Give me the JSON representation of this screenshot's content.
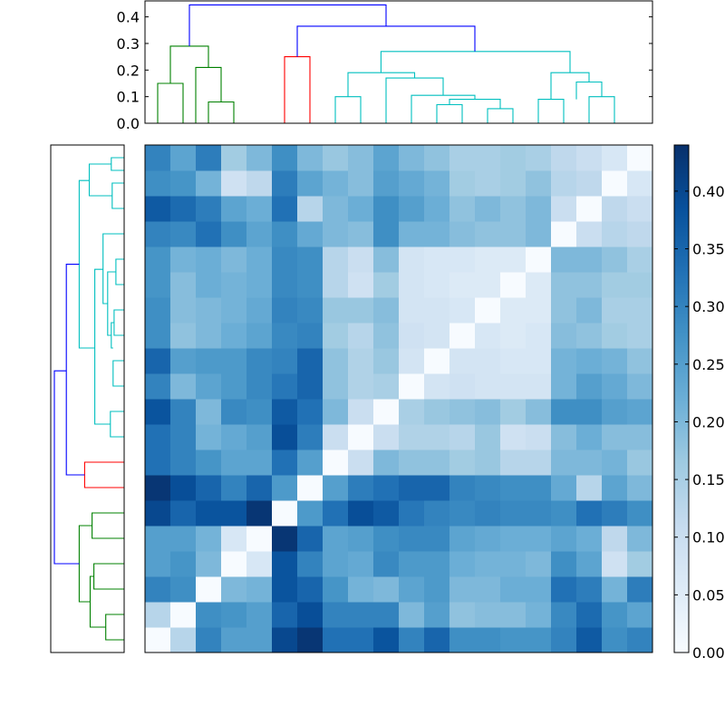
{
  "chart_data": [
    {
      "type": "heatmap",
      "title": "",
      "xlabel": "",
      "ylabel": "",
      "colormap": "Blues",
      "n": 20,
      "matrix": [
        [
          0.0,
          0.13,
          0.3,
          0.25,
          0.25,
          0.4,
          0.43,
          0.33,
          0.33,
          0.38,
          0.3,
          0.35,
          0.28,
          0.28,
          0.27,
          0.27,
          0.3,
          0.37,
          0.28,
          0.3
        ],
        [
          0.13,
          0.0,
          0.28,
          0.27,
          0.25,
          0.35,
          0.39,
          0.3,
          0.3,
          0.3,
          0.2,
          0.25,
          0.18,
          0.19,
          0.19,
          0.21,
          0.29,
          0.34,
          0.27,
          0.24
        ],
        [
          0.3,
          0.28,
          0.0,
          0.2,
          0.21,
          0.38,
          0.35,
          0.27,
          0.21,
          0.2,
          0.24,
          0.26,
          0.2,
          0.2,
          0.22,
          0.22,
          0.33,
          0.31,
          0.21,
          0.31
        ],
        [
          0.25,
          0.27,
          0.2,
          0.0,
          0.07,
          0.38,
          0.3,
          0.24,
          0.23,
          0.29,
          0.26,
          0.26,
          0.22,
          0.21,
          0.21,
          0.2,
          0.28,
          0.24,
          0.09,
          0.16
        ],
        [
          0.25,
          0.25,
          0.21,
          0.07,
          0.0,
          0.43,
          0.35,
          0.24,
          0.25,
          0.28,
          0.29,
          0.29,
          0.24,
          0.23,
          0.22,
          0.22,
          0.24,
          0.22,
          0.12,
          0.2
        ],
        [
          0.4,
          0.35,
          0.38,
          0.38,
          0.43,
          0.0,
          0.26,
          0.33,
          0.39,
          0.37,
          0.32,
          0.3,
          0.29,
          0.3,
          0.29,
          0.29,
          0.28,
          0.33,
          0.31,
          0.28
        ],
        [
          0.43,
          0.39,
          0.35,
          0.3,
          0.35,
          0.26,
          0.0,
          0.25,
          0.31,
          0.33,
          0.35,
          0.35,
          0.3,
          0.29,
          0.28,
          0.28,
          0.23,
          0.13,
          0.24,
          0.2
        ],
        [
          0.33,
          0.3,
          0.27,
          0.24,
          0.24,
          0.33,
          0.25,
          0.0,
          0.1,
          0.2,
          0.18,
          0.18,
          0.16,
          0.17,
          0.13,
          0.13,
          0.2,
          0.2,
          0.21,
          0.17
        ],
        [
          0.33,
          0.3,
          0.21,
          0.23,
          0.25,
          0.39,
          0.31,
          0.1,
          0.0,
          0.1,
          0.14,
          0.14,
          0.13,
          0.17,
          0.09,
          0.1,
          0.19,
          0.22,
          0.19,
          0.19
        ],
        [
          0.38,
          0.3,
          0.2,
          0.29,
          0.28,
          0.37,
          0.33,
          0.2,
          0.1,
          0.0,
          0.15,
          0.17,
          0.18,
          0.19,
          0.16,
          0.19,
          0.28,
          0.28,
          0.25,
          0.24
        ],
        [
          0.3,
          0.2,
          0.24,
          0.26,
          0.29,
          0.32,
          0.35,
          0.18,
          0.14,
          0.15,
          0.0,
          0.08,
          0.09,
          0.08,
          0.08,
          0.08,
          0.21,
          0.25,
          0.23,
          0.2
        ],
        [
          0.35,
          0.25,
          0.26,
          0.26,
          0.29,
          0.3,
          0.35,
          0.18,
          0.14,
          0.17,
          0.08,
          0.0,
          0.08,
          0.08,
          0.07,
          0.07,
          0.21,
          0.22,
          0.21,
          0.18
        ],
        [
          0.28,
          0.18,
          0.2,
          0.22,
          0.24,
          0.29,
          0.3,
          0.16,
          0.13,
          0.18,
          0.09,
          0.08,
          0.0,
          0.07,
          0.06,
          0.07,
          0.19,
          0.18,
          0.16,
          0.15
        ],
        [
          0.28,
          0.19,
          0.2,
          0.21,
          0.23,
          0.3,
          0.29,
          0.17,
          0.17,
          0.19,
          0.08,
          0.08,
          0.07,
          0.0,
          0.06,
          0.06,
          0.18,
          0.2,
          0.15,
          0.15
        ],
        [
          0.27,
          0.19,
          0.22,
          0.21,
          0.22,
          0.29,
          0.28,
          0.13,
          0.09,
          0.16,
          0.08,
          0.07,
          0.06,
          0.06,
          0.0,
          0.06,
          0.18,
          0.18,
          0.16,
          0.16
        ],
        [
          0.27,
          0.21,
          0.22,
          0.2,
          0.22,
          0.29,
          0.28,
          0.13,
          0.1,
          0.19,
          0.08,
          0.07,
          0.07,
          0.06,
          0.06,
          0.0,
          0.2,
          0.2,
          0.18,
          0.15
        ],
        [
          0.3,
          0.29,
          0.33,
          0.28,
          0.24,
          0.28,
          0.23,
          0.2,
          0.19,
          0.28,
          0.21,
          0.21,
          0.19,
          0.18,
          0.18,
          0.2,
          0.0,
          0.1,
          0.13,
          0.12
        ],
        [
          0.37,
          0.34,
          0.31,
          0.24,
          0.22,
          0.33,
          0.13,
          0.2,
          0.22,
          0.28,
          0.25,
          0.22,
          0.18,
          0.2,
          0.18,
          0.2,
          0.1,
          0.0,
          0.12,
          0.1
        ],
        [
          0.28,
          0.27,
          0.21,
          0.09,
          0.12,
          0.31,
          0.24,
          0.21,
          0.19,
          0.25,
          0.23,
          0.21,
          0.16,
          0.15,
          0.16,
          0.18,
          0.13,
          0.12,
          0.0,
          0.07
        ],
        [
          0.3,
          0.24,
          0.31,
          0.16,
          0.2,
          0.28,
          0.2,
          0.17,
          0.19,
          0.24,
          0.2,
          0.18,
          0.15,
          0.15,
          0.16,
          0.15,
          0.12,
          0.1,
          0.07,
          0.0
        ]
      ],
      "colorbar": {
        "min": 0.0,
        "max": 0.44,
        "ticks": [
          "0.00",
          "0.05",
          "0.10",
          "0.15",
          "0.20",
          "0.25",
          "0.30",
          "0.35",
          "0.40"
        ]
      }
    },
    {
      "type": "dendrogram",
      "orientation": "top",
      "ylim": [
        0,
        0.46
      ],
      "yticks": [
        "0.0",
        "0.1",
        "0.2",
        "0.3",
        "0.4"
      ],
      "links": [
        {
          "x": [
            0,
            0,
            1,
            1
          ],
          "y": [
            0,
            0.15,
            0.15,
            0
          ],
          "color": "#008000"
        },
        {
          "x": [
            2,
            2,
            3,
            3
          ],
          "y": [
            0,
            0.08,
            0.08,
            0
          ],
          "color": "#008000"
        },
        {
          "x": [
            1.5,
            1.5,
            2.5,
            2.5
          ],
          "y": [
            0,
            0.21,
            0.21,
            0.08
          ],
          "color": "#008000"
        },
        {
          "x": [
            0.5,
            0.5,
            2,
            2
          ],
          "y": [
            0.15,
            0.29,
            0.29,
            0.21
          ],
          "color": "#008000"
        },
        {
          "x": [
            5,
            5,
            6,
            6
          ],
          "y": [
            0,
            0.25,
            0.25,
            0
          ],
          "color": "#ff0000"
        },
        {
          "x": [
            7,
            7,
            8,
            8
          ],
          "y": [
            0,
            0.1,
            0.1,
            0
          ],
          "color": "#00bfbf"
        },
        {
          "x": [
            11,
            11,
            12,
            12
          ],
          "y": [
            0,
            0.07,
            0.07,
            0
          ],
          "color": "#00bfbf"
        },
        {
          "x": [
            13,
            13,
            14,
            14
          ],
          "y": [
            0,
            0.055,
            0.055,
            0
          ],
          "color": "#00bfbf"
        },
        {
          "x": [
            11.5,
            11.5,
            13.5,
            13.5
          ],
          "y": [
            0.07,
            0.09,
            0.09,
            0.055
          ],
          "color": "#00bfbf"
        },
        {
          "x": [
            10,
            10,
            12.5,
            12.5
          ],
          "y": [
            0,
            0.105,
            0.105,
            0.09
          ],
          "color": "#00bfbf"
        },
        {
          "x": [
            9,
            9,
            11.25,
            11.25
          ],
          "y": [
            0,
            0.17,
            0.17,
            0.105
          ],
          "color": "#00bfbf"
        },
        {
          "x": [
            7.5,
            7.5,
            10.125,
            10.125
          ],
          "y": [
            0.1,
            0.19,
            0.19,
            0.17
          ],
          "color": "#00bfbf"
        },
        {
          "x": [
            15,
            15,
            16,
            16
          ],
          "y": [
            0,
            0.09,
            0.09,
            0
          ],
          "color": "#00bfbf"
        },
        {
          "x": [
            17,
            17,
            18,
            18
          ],
          "y": [
            0,
            0.1,
            0.1,
            0
          ],
          "color": "#00bfbf"
        },
        {
          "x": [
            16.5,
            16.5,
            17.5,
            17.5
          ],
          "y": [
            0.09,
            0.155,
            0.155,
            0.1
          ],
          "color": "#00bfbf"
        },
        {
          "x": [
            15.5,
            15.5,
            17,
            17
          ],
          "y": [
            0.09,
            0.19,
            0.19,
            0.155
          ],
          "color": "#00bfbf"
        },
        {
          "x": [
            8.8,
            8.8,
            16.25,
            16.25
          ],
          "y": [
            0.19,
            0.27,
            0.27,
            0.19
          ],
          "color": "#00bfbf"
        },
        {
          "x": [
            5.5,
            5.5,
            12.5,
            12.5
          ],
          "y": [
            0.25,
            0.365,
            0.365,
            0.27
          ],
          "color": "#0000ff"
        },
        {
          "x": [
            1.25,
            1.25,
            9,
            9
          ],
          "y": [
            0.29,
            0.445,
            0.445,
            0.365
          ],
          "color": "#0000ff"
        }
      ]
    },
    {
      "type": "dendrogram",
      "orientation": "left",
      "links": [
        {
          "r": [
            0,
            0,
            1,
            1
          ],
          "d": [
            0,
            0.1,
            0.1,
            0
          ],
          "color": "#008000"
        },
        {
          "r": [
            2,
            2,
            3,
            3
          ],
          "d": [
            0,
            0.165,
            0.165,
            0
          ],
          "color": "#008000"
        },
        {
          "r": [
            0.5,
            0.5,
            2.5,
            2.5
          ],
          "d": [
            0.1,
            0.185,
            0.185,
            0.165
          ],
          "color": "#008000"
        },
        {
          "r": [
            4,
            4,
            5,
            5
          ],
          "d": [
            0,
            0.175,
            0.175,
            0
          ],
          "color": "#008000"
        },
        {
          "r": [
            1.5,
            1.5,
            4.5,
            4.5
          ],
          "d": [
            0.185,
            0.245,
            0.245,
            0.175
          ],
          "color": "#008000"
        },
        {
          "r": [
            6,
            6,
            7,
            7
          ],
          "d": [
            0,
            0.215,
            0.215,
            0
          ],
          "color": "#ff0000"
        },
        {
          "r": [
            8,
            8,
            9,
            9
          ],
          "d": [
            0,
            0.075,
            0.075,
            0
          ],
          "color": "#00bfbf"
        },
        {
          "r": [
            10,
            10,
            11,
            11
          ],
          "d": [
            0,
            0.06,
            0.06,
            0
          ],
          "color": "#00bfbf"
        },
        {
          "r": [
            12,
            12,
            13,
            13
          ],
          "d": [
            0,
            0.055,
            0.055,
            0
          ],
          "color": "#00bfbf"
        },
        {
          "r": [
            11.5,
            11.5,
            12.5,
            12.5
          ],
          "d": [
            0.06,
            0.07,
            0.07,
            0.055
          ],
          "color": "#00bfbf"
        },
        {
          "r": [
            14,
            14,
            15,
            15
          ],
          "d": [
            0,
            0.045,
            0.045,
            0
          ],
          "color": "#00bfbf"
        },
        {
          "r": [
            12,
            12,
            14.5,
            14.5
          ],
          "d": [
            0.07,
            0.09,
            0.09,
            0.045
          ],
          "color": "#00bfbf"
        },
        {
          "r": [
            13.25,
            13.25,
            16,
            16
          ],
          "d": [
            0.09,
            0.115,
            0.115,
            0
          ],
          "color": "#00bfbf"
        },
        {
          "r": [
            8.5,
            8.5,
            14.6,
            14.6
          ],
          "d": [
            0.075,
            0.16,
            0.16,
            0.115
          ],
          "color": "#00bfbf"
        },
        {
          "r": [
            17,
            17,
            18,
            18
          ],
          "d": [
            0,
            0.065,
            0.065,
            0
          ],
          "color": "#00bfbf"
        },
        {
          "r": [
            18.5,
            18.5,
            19,
            19
          ],
          "d": [
            0,
            0.07,
            0.07,
            0
          ],
          "color": "#00bfbf"
        },
        {
          "r": [
            17.5,
            17.5,
            18.75,
            18.75
          ],
          "d": [
            0.065,
            0.19,
            0.19,
            0.07
          ],
          "color": "#00bfbf"
        },
        {
          "r": [
            11.5,
            11.5,
            18.1,
            18.1
          ],
          "d": [
            0.16,
            0.245,
            0.245,
            0.19
          ],
          "color": "#00bfbf"
        },
        {
          "r": [
            6.5,
            6.5,
            14.8,
            14.8
          ],
          "d": [
            0.215,
            0.315,
            0.315,
            0.245
          ],
          "color": "#0000ff"
        },
        {
          "r": [
            3,
            3,
            10.6,
            10.6
          ],
          "d": [
            0.245,
            0.38,
            0.38,
            0.315
          ],
          "color": "#0000ff"
        }
      ],
      "dmax": 0.39
    }
  ]
}
